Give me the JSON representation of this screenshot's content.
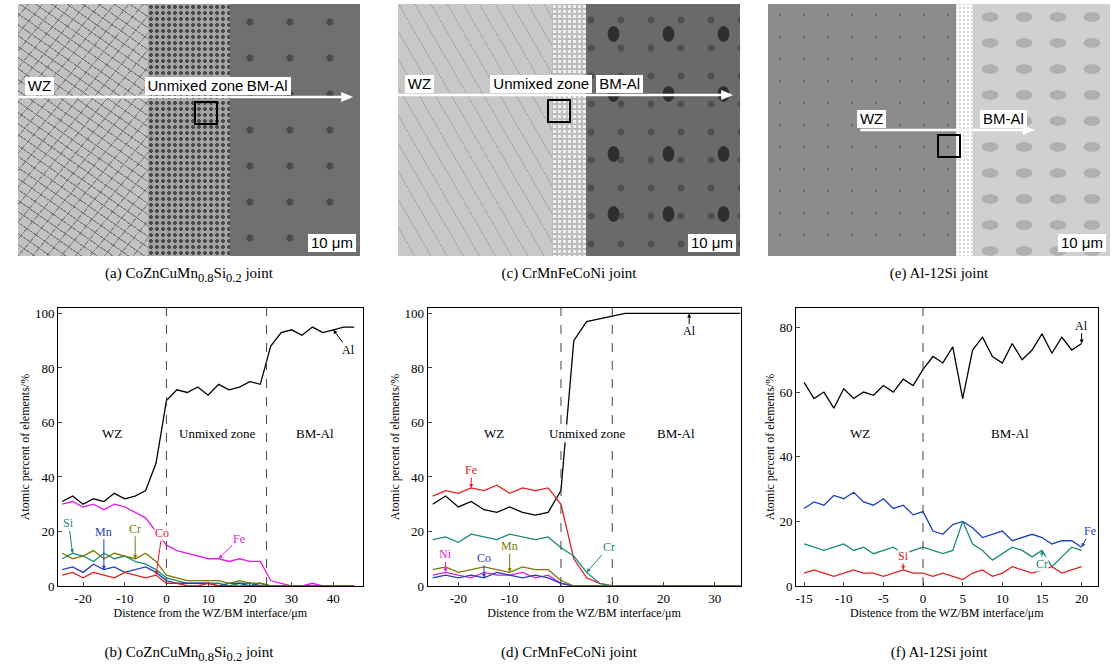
{
  "micrographs": [
    {
      "caption": "(a) CoZnCuMn0.8Si0.2 joint",
      "regions": [
        "WZ",
        "Unmixed zone",
        "BM-Al"
      ],
      "scale_bar": "10 μm"
    },
    {
      "caption": "(c) CrMnFeCoNi joint",
      "regions": [
        "WZ",
        "Unmixed zone",
        "BM-Al"
      ],
      "scale_bar": "10 μm"
    },
    {
      "caption": "(e) Al-12Si joint",
      "regions": [
        "WZ",
        "BM-Al"
      ],
      "scale_bar": "10 μm"
    }
  ],
  "chart_data": [
    {
      "type": "line",
      "caption": "(b) CoZnCuMn0.8Si0.2 joint",
      "x_label": "Distence from the WZ/BM interface/μm",
      "y_label": "Atomic percent of elements/%",
      "zones": [
        "WZ",
        "Unmixed zone",
        "BM-Al"
      ],
      "boundaries": [
        0,
        24
      ],
      "xlim": [
        -26,
        47
      ],
      "xticks": [
        -20,
        -10,
        0,
        10,
        20,
        30,
        40
      ],
      "ylim": [
        0,
        102
      ],
      "yticks": [
        0,
        20,
        40,
        60,
        80,
        100
      ],
      "grid": false,
      "x": [
        -25,
        -22.5,
        -20,
        -17.5,
        -15,
        -12.5,
        -10,
        -7.5,
        -5,
        -2.5,
        0,
        2.5,
        5,
        7.5,
        10,
        12.5,
        15,
        17.5,
        20,
        22.5,
        25,
        27.5,
        30,
        32.5,
        35,
        37.5,
        40,
        42.5,
        45
      ],
      "series": [
        {
          "name": "Al",
          "color": "#000000",
          "values": [
            31,
            33,
            30,
            32,
            31,
            34,
            32,
            33,
            35,
            45,
            68,
            72,
            71,
            73,
            70,
            74,
            72,
            73,
            75,
            74,
            88,
            93,
            94,
            92,
            95,
            93,
            94,
            95,
            95
          ]
        },
        {
          "name": "Fe",
          "color": "#e020e0",
          "values": [
            30,
            31,
            29,
            30,
            28,
            30,
            29,
            27,
            25,
            20,
            15,
            13,
            12,
            11,
            10,
            10,
            9,
            10,
            9,
            9,
            2,
            1,
            0,
            0,
            1,
            0,
            0,
            0,
            0
          ]
        },
        {
          "name": "Si",
          "color": "#1a8a7a",
          "values": [
            10,
            12,
            11,
            9,
            12,
            10,
            11,
            9,
            8,
            6,
            3,
            2,
            1,
            1,
            1,
            1,
            0,
            1,
            1,
            0,
            0,
            0,
            0,
            0,
            0,
            0,
            0,
            0,
            0
          ]
        },
        {
          "name": "Mn",
          "color": "#1f3fbf",
          "values": [
            6,
            7,
            5,
            8,
            6,
            7,
            5,
            6,
            7,
            5,
            2,
            1,
            1,
            1,
            1,
            0,
            1,
            1,
            0,
            1,
            0,
            0,
            0,
            0,
            0,
            0,
            0,
            0,
            0
          ]
        },
        {
          "name": "Cr",
          "color": "#7a7a00",
          "values": [
            12,
            10,
            11,
            13,
            10,
            12,
            11,
            10,
            12,
            9,
            4,
            3,
            2,
            2,
            2,
            2,
            1,
            2,
            1,
            1,
            0,
            0,
            0,
            0,
            0,
            0,
            0,
            0,
            0
          ]
        },
        {
          "name": "Co",
          "color": "#e02020",
          "values": [
            4,
            5,
            3,
            5,
            4,
            3,
            5,
            4,
            3,
            4,
            1,
            1,
            0,
            0,
            1,
            0,
            0,
            0,
            0,
            0,
            0,
            0,
            0,
            0,
            0,
            0,
            0,
            0,
            0
          ]
        }
      ]
    },
    {
      "type": "line",
      "caption": "(d) CrMnFeCoNi joint",
      "x_label": "Distence from the WZ/BM interface/μm",
      "y_label": "Atomic percent of elements/%",
      "zones": [
        "WZ",
        "Unmixed zone",
        "BM-Al"
      ],
      "boundaries": [
        0,
        10
      ],
      "xlim": [
        -26,
        35
      ],
      "xticks": [
        -20,
        -10,
        0,
        10,
        20,
        30
      ],
      "ylim": [
        0,
        102
      ],
      "yticks": [
        0,
        20,
        40,
        60,
        80,
        100
      ],
      "grid": false,
      "x": [
        -25,
        -22.5,
        -20,
        -17.5,
        -15,
        -12.5,
        -10,
        -7.5,
        -5,
        -2.5,
        0,
        2.5,
        5,
        7.5,
        10,
        12.5,
        15,
        17.5,
        20,
        22.5,
        25,
        27.5,
        30,
        32.5,
        35
      ],
      "series": [
        {
          "name": "Al",
          "color": "#000000",
          "values": [
            30,
            33,
            29,
            31,
            28,
            27,
            29,
            27,
            26,
            27,
            35,
            90,
            97,
            98,
            99,
            100,
            100,
            100,
            100,
            100,
            100,
            100,
            100,
            100,
            100
          ]
        },
        {
          "name": "Fe",
          "color": "#e02020",
          "values": [
            33,
            35,
            34,
            36,
            35,
            37,
            34,
            36,
            35,
            36,
            30,
            10,
            3,
            1,
            0,
            0,
            0,
            0,
            0,
            0,
            0,
            0,
            0,
            0,
            0
          ]
        },
        {
          "name": "Cr",
          "color": "#1a8a7a",
          "values": [
            17,
            18,
            16,
            19,
            18,
            17,
            19,
            18,
            17,
            18,
            14,
            11,
            5,
            1,
            0,
            0,
            0,
            0,
            0,
            0,
            0,
            0,
            0,
            0,
            0
          ]
        },
        {
          "name": "Ni",
          "color": "#e020e0",
          "values": [
            4,
            5,
            4,
            3,
            5,
            4,
            4,
            5,
            3,
            4,
            1,
            0,
            0,
            0,
            0,
            0,
            0,
            0,
            0,
            0,
            0,
            0,
            0,
            0,
            0
          ]
        },
        {
          "name": "Co",
          "color": "#1f3fbf",
          "values": [
            3,
            4,
            3,
            4,
            3,
            5,
            4,
            3,
            4,
            3,
            1,
            0,
            0,
            0,
            0,
            0,
            0,
            0,
            0,
            0,
            0,
            0,
            0,
            0,
            0
          ]
        },
        {
          "name": "Mn",
          "color": "#7a7a00",
          "values": [
            6,
            7,
            5,
            6,
            7,
            6,
            5,
            7,
            6,
            6,
            2,
            0,
            0,
            0,
            0,
            0,
            0,
            0,
            0,
            0,
            0,
            0,
            0,
            0,
            0
          ]
        }
      ]
    },
    {
      "type": "line",
      "caption": "(f) Al-12Si joint",
      "x_label": "Distence from the WZ/BM interface/μm",
      "y_label": "Atomic percent of elements/%",
      "zones": [
        "WZ",
        "BM-Al"
      ],
      "boundaries": [
        0
      ],
      "xlim": [
        -16,
        22
      ],
      "xticks": [
        -15,
        -10,
        -5,
        0,
        5,
        10,
        15,
        20
      ],
      "ylim": [
        0,
        86
      ],
      "yticks": [
        0,
        20,
        40,
        60,
        80
      ],
      "grid": false,
      "x": [
        -15,
        -13.75,
        -12.5,
        -11.25,
        -10,
        -8.75,
        -7.5,
        -6.25,
        -5,
        -3.75,
        -2.5,
        -1.25,
        0,
        1.25,
        2.5,
        3.75,
        5,
        6.25,
        7.5,
        8.75,
        10,
        11.25,
        12.5,
        13.75,
        15,
        16.25,
        17.5,
        18.75,
        20
      ],
      "series": [
        {
          "name": "Al",
          "color": "#000000",
          "values": [
            63,
            58,
            60,
            55,
            61,
            58,
            60,
            59,
            62,
            60,
            64,
            62,
            67,
            71,
            69,
            74,
            58,
            73,
            77,
            71,
            69,
            75,
            70,
            73,
            78,
            72,
            77,
            73,
            75
          ]
        },
        {
          "name": "Fe",
          "color": "#1f3fbf",
          "values": [
            24,
            26,
            25,
            28,
            27,
            29,
            26,
            25,
            27,
            24,
            25,
            22,
            23,
            17,
            16,
            19,
            20,
            18,
            15,
            16,
            17,
            14,
            15,
            16,
            15,
            13,
            14,
            14,
            12
          ]
        },
        {
          "name": "Cr",
          "color": "#1a8a7a",
          "values": [
            13,
            12,
            11,
            12,
            13,
            11,
            12,
            10,
            11,
            12,
            10,
            11,
            12,
            11,
            10,
            11,
            20,
            13,
            11,
            8,
            10,
            12,
            11,
            9,
            11,
            6,
            9,
            12,
            11
          ]
        },
        {
          "name": "Si",
          "color": "#e02020",
          "values": [
            4,
            5,
            4,
            3,
            4,
            5,
            4,
            4,
            3,
            4,
            5,
            4,
            4,
            3,
            4,
            3,
            2,
            4,
            5,
            3,
            4,
            6,
            5,
            4,
            5,
            6,
            4,
            5,
            6
          ]
        }
      ]
    }
  ]
}
